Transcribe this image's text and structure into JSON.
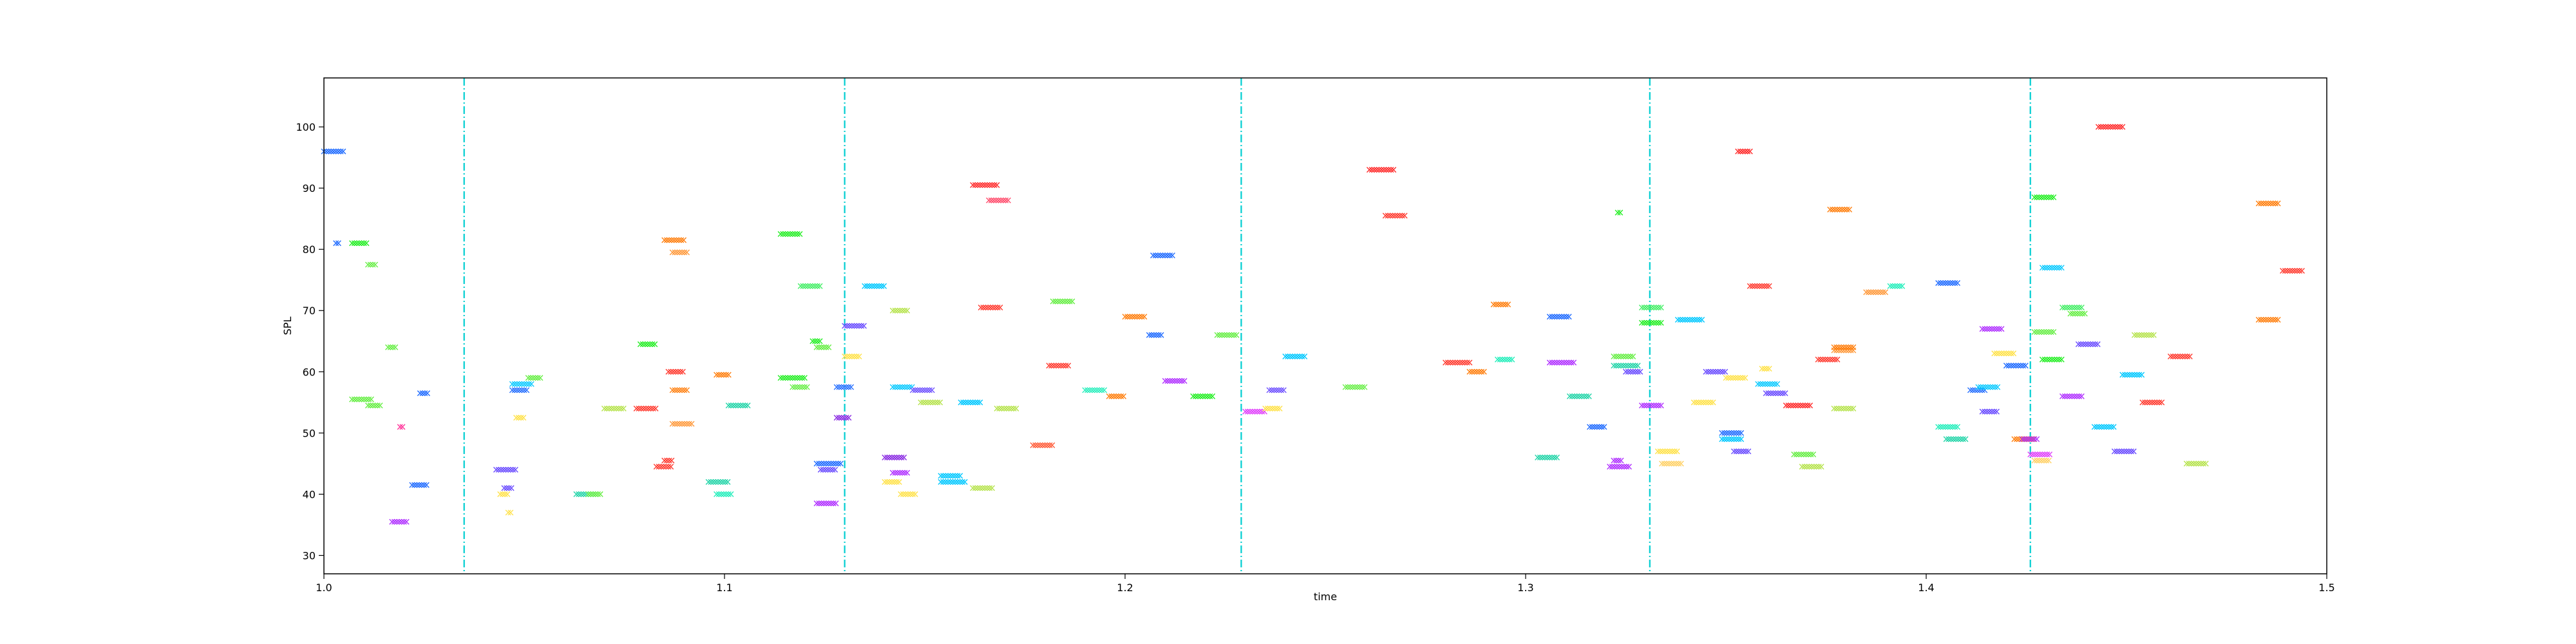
{
  "chart_data": {
    "type": "scatter",
    "title": "",
    "xlabel": "time",
    "ylabel": "SPL",
    "xlim": [
      1.0,
      1.5
    ],
    "ylim": [
      27,
      108
    ],
    "x_ticks": [
      1.0,
      1.1,
      1.2,
      1.3,
      1.4,
      1.5
    ],
    "x_tick_labels": [
      "1.0",
      "1.1",
      "1.2",
      "1.3",
      "1.4",
      "1.5"
    ],
    "y_ticks": [
      30,
      40,
      50,
      60,
      70,
      80,
      90,
      100
    ],
    "y_tick_labels": [
      "30",
      "40",
      "50",
      "60",
      "70",
      "80",
      "90",
      "100"
    ],
    "marker": "x",
    "grid": false,
    "legend": "none",
    "vertical_lines": {
      "color": "#00ced1",
      "style": "dash-dot",
      "x": [
        1.035,
        1.13,
        1.229,
        1.331,
        1.426
      ]
    },
    "notes": [
      {
        "x": [
          1.0,
          1.005
        ],
        "y": 96,
        "color": "#1f6bff"
      },
      {
        "x": [
          1.003,
          1.004
        ],
        "y": 81,
        "color": "#1f6bff"
      },
      {
        "x": [
          1.007,
          1.011
        ],
        "y": 81,
        "color": "#22ee22"
      },
      {
        "x": [
          1.007,
          1.012
        ],
        "y": 55.5,
        "color": "#66ee44"
      },
      {
        "x": [
          1.011,
          1.013
        ],
        "y": 77.5,
        "color": "#66ee44"
      },
      {
        "x": [
          1.011,
          1.014
        ],
        "y": 54.5,
        "color": "#66ee44"
      },
      {
        "x": [
          1.016,
          1.018
        ],
        "y": 64,
        "color": "#66ee44"
      },
      {
        "x": [
          1.017,
          1.021
        ],
        "y": 35.5,
        "color": "#b030ff"
      },
      {
        "x": [
          1.019,
          1.02
        ],
        "y": 51,
        "color": "#ff3399"
      },
      {
        "x": [
          1.022,
          1.026
        ],
        "y": 41.5,
        "color": "#1f6bff"
      },
      {
        "x": [
          1.024,
          1.026
        ],
        "y": 56.5,
        "color": "#1f6bff"
      },
      {
        "x": [
          1.043,
          1.048
        ],
        "y": 44,
        "color": "#6a4cff"
      },
      {
        "x": [
          1.045,
          1.047
        ],
        "y": 41,
        "color": "#6a4cff"
      },
      {
        "x": [
          1.044,
          1.046
        ],
        "y": 40,
        "color": "#ffe24a"
      },
      {
        "x": [
          1.046,
          1.047
        ],
        "y": 37,
        "color": "#ffe24a"
      },
      {
        "x": [
          1.048,
          1.05
        ],
        "y": 52.5,
        "color": "#ffe24a"
      },
      {
        "x": [
          1.047,
          1.051
        ],
        "y": 57,
        "color": "#1f6bff"
      },
      {
        "x": [
          1.047,
          1.052
        ],
        "y": 58,
        "color": "#00c8ff"
      },
      {
        "x": [
          1.051,
          1.054
        ],
        "y": 59,
        "color": "#66ee44"
      },
      {
        "x": [
          1.063,
          1.068
        ],
        "y": 40,
        "color": "#22d4a8"
      },
      {
        "x": [
          1.066,
          1.069
        ],
        "y": 40,
        "color": "#66ee44"
      },
      {
        "x": [
          1.07,
          1.075
        ],
        "y": 54,
        "color": "#b6e34d"
      },
      {
        "x": [
          1.078,
          1.083
        ],
        "y": 54,
        "color": "#ff3b30"
      },
      {
        "x": [
          1.079,
          1.083
        ],
        "y": 64.5,
        "color": "#22ee22"
      },
      {
        "x": [
          1.083,
          1.087
        ],
        "y": 44.5,
        "color": "#ff3b30"
      },
      {
        "x": [
          1.085,
          1.087
        ],
        "y": 45.5,
        "color": "#ff3b30"
      },
      {
        "x": [
          1.085,
          1.09
        ],
        "y": 81.5,
        "color": "#ff7f0e"
      },
      {
        "x": [
          1.087,
          1.091
        ],
        "y": 79.5,
        "color": "#ff9a3c"
      },
      {
        "x": [
          1.086,
          1.09
        ],
        "y": 60,
        "color": "#ff3b30"
      },
      {
        "x": [
          1.087,
          1.091
        ],
        "y": 57,
        "color": "#ff7f0e"
      },
      {
        "x": [
          1.087,
          1.092
        ],
        "y": 51.5,
        "color": "#ff9a3c"
      },
      {
        "x": [
          1.096,
          1.101
        ],
        "y": 42,
        "color": "#22d4a8"
      },
      {
        "x": [
          1.098,
          1.102
        ],
        "y": 40,
        "color": "#22eebb"
      },
      {
        "x": [
          1.098,
          1.101
        ],
        "y": 59.5,
        "color": "#ff7f0e"
      },
      {
        "x": [
          1.101,
          1.106
        ],
        "y": 54.5,
        "color": "#22d4a8"
      },
      {
        "x": [
          1.114,
          1.119
        ],
        "y": 82.5,
        "color": "#22ee22"
      },
      {
        "x": [
          1.114,
          1.12
        ],
        "y": 59,
        "color": "#22ee22"
      },
      {
        "x": [
          1.117,
          1.121
        ],
        "y": 57.5,
        "color": "#66ee44"
      },
      {
        "x": [
          1.119,
          1.124
        ],
        "y": 74,
        "color": "#44ee66"
      },
      {
        "x": [
          1.122,
          1.124
        ],
        "y": 65,
        "color": "#22ee22"
      },
      {
        "x": [
          1.123,
          1.126
        ],
        "y": 64,
        "color": "#66ee44"
      },
      {
        "x": [
          1.123,
          1.128
        ],
        "y": 38.5,
        "color": "#b030ff"
      },
      {
        "x": [
          1.123,
          1.129
        ],
        "y": 45,
        "color": "#1f6bff"
      },
      {
        "x": [
          1.124,
          1.128
        ],
        "y": 44,
        "color": "#6a4cff"
      },
      {
        "x": [
          1.128,
          1.132
        ],
        "y": 57.5,
        "color": "#1f6bff"
      },
      {
        "x": [
          1.128,
          1.131
        ],
        "y": 52.5,
        "color": "#8a2be2"
      },
      {
        "x": [
          1.13,
          1.135
        ],
        "y": 67.5,
        "color": "#6a4cff"
      },
      {
        "x": [
          1.13,
          1.134
        ],
        "y": 62.5,
        "color": "#ffe24a"
      },
      {
        "x": [
          1.135,
          1.14
        ],
        "y": 74,
        "color": "#00c8ff"
      },
      {
        "x": [
          1.14,
          1.145
        ],
        "y": 46,
        "color": "#8a2be2"
      },
      {
        "x": [
          1.14,
          1.144
        ],
        "y": 42,
        "color": "#ffe24a"
      },
      {
        "x": [
          1.142,
          1.146
        ],
        "y": 43.5,
        "color": "#b030ff"
      },
      {
        "x": [
          1.144,
          1.148
        ],
        "y": 40,
        "color": "#ffe24a"
      },
      {
        "x": [
          1.142,
          1.146
        ],
        "y": 70,
        "color": "#b6e34d"
      },
      {
        "x": [
          1.142,
          1.147
        ],
        "y": 57.5,
        "color": "#00c8ff"
      },
      {
        "x": [
          1.147,
          1.152
        ],
        "y": 57,
        "color": "#6a4cff"
      },
      {
        "x": [
          1.149,
          1.154
        ],
        "y": 55,
        "color": "#b6e34d"
      },
      {
        "x": [
          1.154,
          1.159
        ],
        "y": 43,
        "color": "#00c8ff"
      },
      {
        "x": [
          1.154,
          1.16
        ],
        "y": 42,
        "color": "#00c8ff"
      },
      {
        "x": [
          1.159,
          1.164
        ],
        "y": 55,
        "color": "#00c8ff"
      },
      {
        "x": [
          1.162,
          1.167
        ],
        "y": 41,
        "color": "#b6e34d"
      },
      {
        "x": [
          1.162,
          1.168
        ],
        "y": 90.5,
        "color": "#ff2a2a"
      },
      {
        "x": [
          1.164,
          1.169
        ],
        "y": 70.5,
        "color": "#ff3b30"
      },
      {
        "x": [
          1.166,
          1.171
        ],
        "y": 88,
        "color": "#ff4d6d"
      },
      {
        "x": [
          1.168,
          1.173
        ],
        "y": 54,
        "color": "#b6e34d"
      },
      {
        "x": [
          1.177,
          1.182
        ],
        "y": 48,
        "color": "#ff5a36"
      },
      {
        "x": [
          1.181,
          1.186
        ],
        "y": 61,
        "color": "#ff3b30"
      },
      {
        "x": [
          1.182,
          1.187
        ],
        "y": 71.5,
        "color": "#66ee44"
      },
      {
        "x": [
          1.19,
          1.195
        ],
        "y": 57,
        "color": "#22eebb"
      },
      {
        "x": [
          1.196,
          1.2
        ],
        "y": 56,
        "color": "#ff7f0e"
      },
      {
        "x": [
          1.2,
          1.205
        ],
        "y": 69,
        "color": "#ff7f0e"
      },
      {
        "x": [
          1.206,
          1.209
        ],
        "y": 66,
        "color": "#1f6bff"
      },
      {
        "x": [
          1.207,
          1.212
        ],
        "y": 79,
        "color": "#1f6bff"
      },
      {
        "x": [
          1.21,
          1.215
        ],
        "y": 58.5,
        "color": "#b030ff"
      },
      {
        "x": [
          1.217,
          1.222
        ],
        "y": 56,
        "color": "#22ee22"
      },
      {
        "x": [
          1.223,
          1.228
        ],
        "y": 66,
        "color": "#66ee44"
      },
      {
        "x": [
          1.23,
          1.235
        ],
        "y": 53.5,
        "color": "#e040fb"
      },
      {
        "x": [
          1.235,
          1.239
        ],
        "y": 54,
        "color": "#ffe24a"
      },
      {
        "x": [
          1.236,
          1.24
        ],
        "y": 57,
        "color": "#6a4cff"
      },
      {
        "x": [
          1.24,
          1.245
        ],
        "y": 62.5,
        "color": "#00c8ff"
      },
      {
        "x": [
          1.255,
          1.26
        ],
        "y": 57.5,
        "color": "#66ee44"
      },
      {
        "x": [
          1.261,
          1.267
        ],
        "y": 93,
        "color": "#ff2a2a"
      },
      {
        "x": [
          1.265,
          1.27
        ],
        "y": 85.5,
        "color": "#ff3b30"
      },
      {
        "x": [
          1.28,
          1.286
        ],
        "y": 61.5,
        "color": "#ff3b30"
      },
      {
        "x": [
          1.286,
          1.29
        ],
        "y": 60,
        "color": "#ff7f0e"
      },
      {
        "x": [
          1.292,
          1.296
        ],
        "y": 71,
        "color": "#ff7f0e"
      },
      {
        "x": [
          1.293,
          1.297
        ],
        "y": 62,
        "color": "#22eebb"
      },
      {
        "x": [
          1.303,
          1.308
        ],
        "y": 46,
        "color": "#22d4a8"
      },
      {
        "x": [
          1.306,
          1.311
        ],
        "y": 69,
        "color": "#1f6bff"
      },
      {
        "x": [
          1.306,
          1.312
        ],
        "y": 61.5,
        "color": "#b030ff"
      },
      {
        "x": [
          1.311,
          1.316
        ],
        "y": 56,
        "color": "#22d4a8"
      },
      {
        "x": [
          1.316,
          1.32
        ],
        "y": 51,
        "color": "#1f6bff"
      },
      {
        "x": [
          1.321,
          1.326
        ],
        "y": 44.5,
        "color": "#b030ff"
      },
      {
        "x": [
          1.322,
          1.324
        ],
        "y": 45.5,
        "color": "#b030ff"
      },
      {
        "x": [
          1.323,
          1.324
        ],
        "y": 86,
        "color": "#22ee22"
      },
      {
        "x": [
          1.322,
          1.327
        ],
        "y": 62.5,
        "color": "#66ee44"
      },
      {
        "x": [
          1.322,
          1.328
        ],
        "y": 61,
        "color": "#22d4a8"
      },
      {
        "x": [
          1.325,
          1.329
        ],
        "y": 60,
        "color": "#6a4cff"
      },
      {
        "x": [
          1.329,
          1.334
        ],
        "y": 54.5,
        "color": "#b030ff"
      },
      {
        "x": [
          1.329,
          1.334
        ],
        "y": 70.5,
        "color": "#44ee66"
      },
      {
        "x": [
          1.329,
          1.334
        ],
        "y": 68,
        "color": "#22ee22"
      },
      {
        "x": [
          1.333,
          1.338
        ],
        "y": 47,
        "color": "#ffe24a"
      },
      {
        "x": [
          1.334,
          1.339
        ],
        "y": 45,
        "color": "#ffd166"
      },
      {
        "x": [
          1.338,
          1.344
        ],
        "y": 68.5,
        "color": "#00c8ff"
      },
      {
        "x": [
          1.342,
          1.347
        ],
        "y": 55,
        "color": "#ffe24a"
      },
      {
        "x": [
          1.345,
          1.35
        ],
        "y": 60,
        "color": "#6a4cff"
      },
      {
        "x": [
          1.349,
          1.354
        ],
        "y": 50,
        "color": "#1f6bff"
      },
      {
        "x": [
          1.349,
          1.354
        ],
        "y": 49,
        "color": "#00c8ff"
      },
      {
        "x": [
          1.35,
          1.355
        ],
        "y": 59,
        "color": "#ffe24a"
      },
      {
        "x": [
          1.353,
          1.356
        ],
        "y": 96,
        "color": "#ff2a2a"
      },
      {
        "x": [
          1.352,
          1.356
        ],
        "y": 47,
        "color": "#6a4cff"
      },
      {
        "x": [
          1.356,
          1.361
        ],
        "y": 74,
        "color": "#ff3b30"
      },
      {
        "x": [
          1.359,
          1.361
        ],
        "y": 60.5,
        "color": "#ffe24a"
      },
      {
        "x": [
          1.358,
          1.363
        ],
        "y": 58,
        "color": "#00c8ff"
      },
      {
        "x": [
          1.36,
          1.365
        ],
        "y": 56.5,
        "color": "#6a4cff"
      },
      {
        "x": [
          1.365,
          1.371
        ],
        "y": 54.5,
        "color": "#ff2a2a"
      },
      {
        "x": [
          1.367,
          1.372
        ],
        "y": 46.5,
        "color": "#66ee44"
      },
      {
        "x": [
          1.369,
          1.374
        ],
        "y": 44.5,
        "color": "#b6e34d"
      },
      {
        "x": [
          1.373,
          1.378
        ],
        "y": 62,
        "color": "#ff3b30"
      },
      {
        "x": [
          1.376,
          1.381
        ],
        "y": 86.5,
        "color": "#ff7f0e"
      },
      {
        "x": [
          1.377,
          1.382
        ],
        "y": 63.5,
        "color": "#ff9a3c"
      },
      {
        "x": [
          1.377,
          1.382
        ],
        "y": 64,
        "color": "#ff7f0e"
      },
      {
        "x": [
          1.377,
          1.382
        ],
        "y": 54,
        "color": "#b6e34d"
      },
      {
        "x": [
          1.385,
          1.39
        ],
        "y": 73,
        "color": "#ff9a3c"
      },
      {
        "x": [
          1.391,
          1.394
        ],
        "y": 74,
        "color": "#22eebb"
      },
      {
        "x": [
          1.403,
          1.408
        ],
        "y": 74.5,
        "color": "#1f6bff"
      },
      {
        "x": [
          1.403,
          1.408
        ],
        "y": 51,
        "color": "#22eebb"
      },
      {
        "x": [
          1.405,
          1.41
        ],
        "y": 49,
        "color": "#22d4a8"
      },
      {
        "x": [
          1.411,
          1.415
        ],
        "y": 57,
        "color": "#1f6bff"
      },
      {
        "x": [
          1.413,
          1.418
        ],
        "y": 57.5,
        "color": "#00c8ff"
      },
      {
        "x": [
          1.414,
          1.418
        ],
        "y": 53.5,
        "color": "#6a4cff"
      },
      {
        "x": [
          1.414,
          1.419
        ],
        "y": 67,
        "color": "#b030ff"
      },
      {
        "x": [
          1.417,
          1.422
        ],
        "y": 63,
        "color": "#ffe24a"
      },
      {
        "x": [
          1.42,
          1.425
        ],
        "y": 61,
        "color": "#1f6bff"
      },
      {
        "x": [
          1.422,
          1.427
        ],
        "y": 49,
        "color": "#ff7f0e"
      },
      {
        "x": [
          1.424,
          1.428
        ],
        "y": 49,
        "color": "#b030ff"
      },
      {
        "x": [
          1.426,
          1.431
        ],
        "y": 46.5,
        "color": "#e040fb"
      },
      {
        "x": [
          1.427,
          1.431
        ],
        "y": 45.5,
        "color": "#ffd166"
      },
      {
        "x": [
          1.427,
          1.432
        ],
        "y": 88.5,
        "color": "#22ee22"
      },
      {
        "x": [
          1.427,
          1.432
        ],
        "y": 66.5,
        "color": "#66ee44"
      },
      {
        "x": [
          1.429,
          1.434
        ],
        "y": 77,
        "color": "#00c8ff"
      },
      {
        "x": [
          1.429,
          1.434
        ],
        "y": 62,
        "color": "#22ee22"
      },
      {
        "x": [
          1.434,
          1.439
        ],
        "y": 70.5,
        "color": "#44ee66"
      },
      {
        "x": [
          1.434,
          1.439
        ],
        "y": 56,
        "color": "#b030ff"
      },
      {
        "x": [
          1.436,
          1.44
        ],
        "y": 69.5,
        "color": "#66ee44"
      },
      {
        "x": [
          1.438,
          1.443
        ],
        "y": 64.5,
        "color": "#6a4cff"
      },
      {
        "x": [
          1.443,
          1.449
        ],
        "y": 100,
        "color": "#ff2a2a"
      },
      {
        "x": [
          1.442,
          1.447
        ],
        "y": 51,
        "color": "#00c8ff"
      },
      {
        "x": [
          1.447,
          1.452
        ],
        "y": 47,
        "color": "#6a4cff"
      },
      {
        "x": [
          1.449,
          1.454
        ],
        "y": 59.5,
        "color": "#00c8ff"
      },
      {
        "x": [
          1.452,
          1.457
        ],
        "y": 66,
        "color": "#b6e34d"
      },
      {
        "x": [
          1.454,
          1.459
        ],
        "y": 55,
        "color": "#ff3b30"
      },
      {
        "x": [
          1.461,
          1.466
        ],
        "y": 62.5,
        "color": "#ff3b30"
      },
      {
        "x": [
          1.465,
          1.47
        ],
        "y": 45,
        "color": "#b6e34d"
      },
      {
        "x": [
          1.483,
          1.488
        ],
        "y": 87.5,
        "color": "#ff7f0e"
      },
      {
        "x": [
          1.483,
          1.488
        ],
        "y": 68.5,
        "color": "#ff7f0e"
      },
      {
        "x": [
          1.489,
          1.494
        ],
        "y": 76.5,
        "color": "#ff3b30"
      }
    ]
  }
}
